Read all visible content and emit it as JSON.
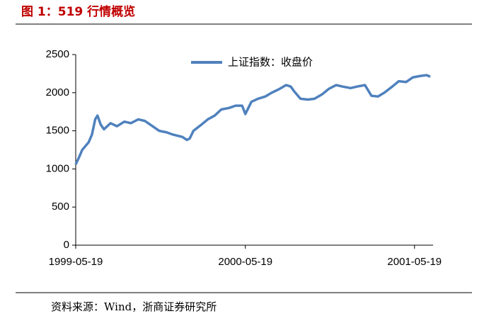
{
  "chart_data": {
    "type": "line",
    "title": "图 1：519 行情概览",
    "source": "资料来源：Wind，浙商证券研究所",
    "x": [
      "1999-05-19",
      "1999-05-26",
      "1999-06-02",
      "1999-06-09",
      "1999-06-16",
      "1999-06-23",
      "1999-06-30",
      "1999-07-05",
      "1999-07-12",
      "1999-07-19",
      "1999-08-02",
      "1999-08-16",
      "1999-09-01",
      "1999-09-15",
      "1999-10-01",
      "1999-10-15",
      "1999-11-01",
      "1999-11-15",
      "1999-12-01",
      "1999-12-15",
      "2000-01-04",
      "2000-01-14",
      "2000-01-20",
      "2000-01-28",
      "2000-02-14",
      "2000-02-28",
      "2000-03-14",
      "2000-03-28",
      "2000-04-14",
      "2000-04-28",
      "2000-05-12",
      "2000-05-19",
      "2000-06-01",
      "2000-06-15",
      "2000-07-01",
      "2000-07-15",
      "2000-08-01",
      "2000-08-15",
      "2000-08-25",
      "2000-09-01",
      "2000-09-15",
      "2000-10-01",
      "2000-10-15",
      "2000-11-01",
      "2000-11-15",
      "2000-12-01",
      "2000-12-15",
      "2001-01-01",
      "2001-01-15",
      "2001-02-01",
      "2001-02-15",
      "2001-03-01",
      "2001-03-15",
      "2001-04-01",
      "2001-04-15",
      "2001-05-01",
      "2001-05-15",
      "2001-06-01",
      "2001-06-14",
      "2001-06-22"
    ],
    "series": [
      {
        "name": "上证指数：收盘价",
        "color": "#4f81bd",
        "values": [
          1060,
          1150,
          1250,
          1300,
          1350,
          1450,
          1650,
          1700,
          1580,
          1520,
          1600,
          1560,
          1620,
          1600,
          1650,
          1630,
          1560,
          1500,
          1480,
          1450,
          1420,
          1380,
          1400,
          1500,
          1580,
          1650,
          1700,
          1780,
          1800,
          1830,
          1830,
          1720,
          1880,
          1920,
          1950,
          2000,
          2050,
          2100,
          2080,
          2020,
          1920,
          1910,
          1920,
          1980,
          2050,
          2100,
          2080,
          2060,
          2080,
          2100,
          1960,
          1950,
          2000,
          2080,
          2150,
          2140,
          2200,
          2220,
          2230,
          2210
        ]
      }
    ],
    "xlim": [
      "1999-05-19",
      "2001-06-28"
    ],
    "xticks": [
      "1999-05-19",
      "2000-05-19",
      "2001-05-19"
    ],
    "ylim": [
      0,
      2500
    ],
    "yticks": [
      0,
      500,
      1000,
      1500,
      2000,
      2500
    ]
  }
}
